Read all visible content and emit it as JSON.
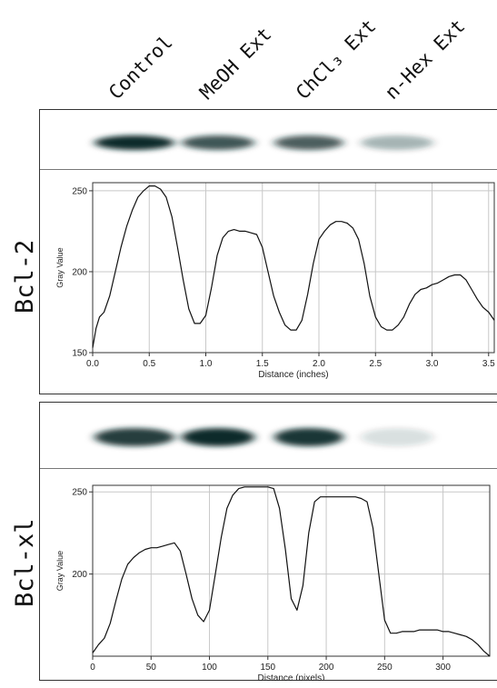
{
  "lanes": [
    "Control",
    "MeOH Ext",
    "ChCl₃ Ext",
    "n-Hex Ext"
  ],
  "proteins": [
    "Bcl-2",
    "Bcl-xl"
  ],
  "blot": {
    "band_color": "#0a2a2a",
    "bcl2_band_intensity": [
      1.0,
      0.8,
      0.75,
      0.35
    ],
    "bclxl_band_intensity": [
      0.9,
      1.0,
      0.95,
      0.15
    ]
  },
  "chart_data": [
    {
      "type": "line",
      "protein": "Bcl-2",
      "xlabel": "Distance (inches)",
      "ylabel": "Gray Value",
      "xlim": [
        0,
        3.55
      ],
      "ylim": [
        150,
        255
      ],
      "xticks": [
        "0.0",
        "0.5",
        "1.0",
        "1.5",
        "2.0",
        "2.5",
        "3.0",
        "3.5"
      ],
      "yticks": [
        "150",
        "200",
        "250"
      ],
      "grid": true,
      "x": [
        0.0,
        0.03,
        0.06,
        0.1,
        0.15,
        0.2,
        0.25,
        0.3,
        0.35,
        0.4,
        0.45,
        0.5,
        0.55,
        0.6,
        0.65,
        0.7,
        0.75,
        0.8,
        0.85,
        0.9,
        0.95,
        1.0,
        1.05,
        1.1,
        1.15,
        1.2,
        1.25,
        1.3,
        1.35,
        1.4,
        1.45,
        1.5,
        1.55,
        1.6,
        1.65,
        1.7,
        1.75,
        1.8,
        1.85,
        1.9,
        1.95,
        2.0,
        2.05,
        2.1,
        2.15,
        2.2,
        2.25,
        2.3,
        2.35,
        2.4,
        2.45,
        2.5,
        2.55,
        2.6,
        2.65,
        2.7,
        2.75,
        2.8,
        2.85,
        2.9,
        2.95,
        3.0,
        3.05,
        3.1,
        3.15,
        3.2,
        3.25,
        3.3,
        3.35,
        3.4,
        3.45,
        3.5,
        3.55
      ],
      "values": [
        153,
        165,
        172,
        175,
        185,
        200,
        215,
        228,
        238,
        246,
        250,
        253,
        253,
        251,
        246,
        234,
        215,
        195,
        177,
        168,
        168,
        173,
        190,
        210,
        221,
        225,
        226,
        225,
        225,
        224,
        223,
        215,
        200,
        185,
        175,
        167,
        164,
        164,
        170,
        186,
        205,
        220,
        225,
        229,
        231,
        231,
        230,
        227,
        220,
        205,
        185,
        172,
        166,
        164,
        164,
        167,
        172,
        180,
        186,
        189,
        190,
        192,
        193,
        195,
        197,
        198,
        198,
        195,
        189,
        183,
        178,
        175,
        170
      ]
    },
    {
      "type": "line",
      "protein": "Bcl-xl",
      "xlabel": "Distance (pixels)",
      "ylabel": "Gray Value",
      "xlim": [
        0,
        340
      ],
      "ylim": [
        150,
        254
      ],
      "xticks": [
        "0",
        "50",
        "100",
        "150",
        "200",
        "250",
        "300"
      ],
      "yticks": [
        "200",
        "250"
      ],
      "grid": true,
      "x": [
        0,
        5,
        10,
        15,
        20,
        25,
        30,
        35,
        40,
        45,
        50,
        55,
        60,
        65,
        70,
        75,
        80,
        85,
        90,
        95,
        100,
        105,
        110,
        115,
        120,
        125,
        130,
        135,
        140,
        145,
        150,
        155,
        160,
        165,
        170,
        175,
        180,
        185,
        190,
        195,
        200,
        205,
        210,
        215,
        220,
        225,
        230,
        235,
        240,
        245,
        250,
        255,
        260,
        265,
        270,
        275,
        280,
        285,
        290,
        295,
        300,
        305,
        310,
        315,
        320,
        325,
        330,
        335,
        340
      ],
      "values": [
        152,
        157,
        161,
        170,
        184,
        197,
        206,
        210,
        213,
        215,
        216,
        216,
        217,
        218,
        219,
        214,
        200,
        185,
        175,
        171,
        178,
        200,
        222,
        240,
        248,
        252,
        253,
        253,
        253,
        253,
        253,
        252,
        240,
        215,
        185,
        178,
        193,
        225,
        244,
        247,
        247,
        247,
        247,
        247,
        247,
        247,
        246,
        244,
        228,
        200,
        172,
        164,
        164,
        165,
        165,
        165,
        166,
        166,
        166,
        166,
        165,
        165,
        164,
        163,
        162,
        160,
        157,
        153,
        150
      ]
    }
  ]
}
